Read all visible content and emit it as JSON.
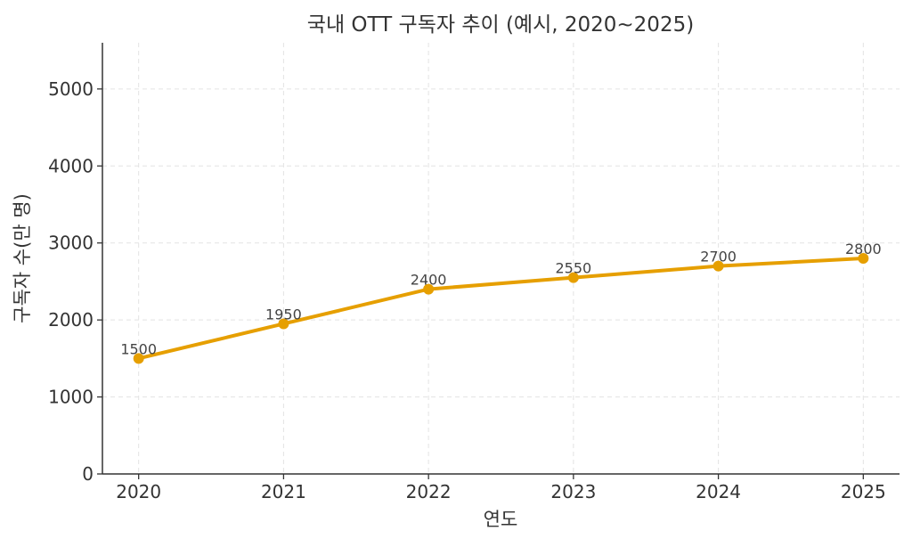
{
  "chart_data": {
    "type": "line",
    "title": "국내 OTT 구독자 추이 (예시, 2020~2025)",
    "xlabel": "연도",
    "ylabel": "구독자 수(만 명)",
    "x": [
      2020,
      2021,
      2022,
      2023,
      2024,
      2025
    ],
    "x_tick_labels": [
      "2020",
      "2021",
      "2022",
      "2023",
      "2024",
      "2025"
    ],
    "y_ticks": [
      0,
      1000,
      2000,
      3000,
      4000,
      5000
    ],
    "y_tick_labels": [
      "0",
      "1000",
      "2000",
      "3000",
      "4000",
      "5000"
    ],
    "series": [
      {
        "values": [
          1500,
          1950,
          2400,
          2550,
          2700,
          2800
        ],
        "data_labels": [
          "1500",
          "1950",
          "2400",
          "2550",
          "2700",
          "2800"
        ],
        "color": "#E69F00",
        "marker": "circle"
      }
    ],
    "xlim": [
      2019.75,
      2025.25
    ],
    "ylim": [
      0,
      5600
    ],
    "grid": true,
    "grid_style": "dashed"
  }
}
